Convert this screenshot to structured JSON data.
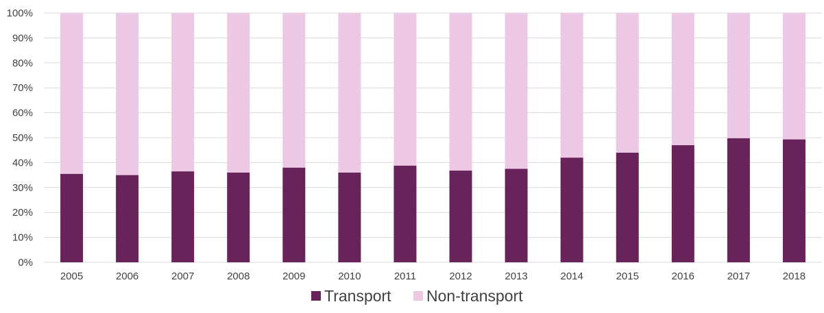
{
  "chart_data": {
    "type": "bar",
    "stacked": true,
    "percent_stacked": true,
    "categories": [
      "2005",
      "2006",
      "2007",
      "2008",
      "2009",
      "2010",
      "2011",
      "2012",
      "2013",
      "2014",
      "2015",
      "2016",
      "2017",
      "2018"
    ],
    "series": [
      {
        "name": "Transport",
        "color": "#68235a",
        "values": [
          35.5,
          35,
          36.5,
          36,
          38,
          36,
          38.8,
          36.8,
          37.5,
          42,
          44,
          47,
          49.8,
          49.3
        ]
      },
      {
        "name": "Non-transport",
        "color": "#ecc8e4",
        "values": [
          64.5,
          65,
          63.5,
          64,
          62,
          64,
          61.2,
          63.2,
          62.5,
          58,
          56,
          53,
          50.2,
          50.7
        ]
      }
    ],
    "y_ticks": [
      "0%",
      "10%",
      "20%",
      "30%",
      "40%",
      "50%",
      "60%",
      "70%",
      "80%",
      "90%",
      "100%"
    ],
    "ylim": [
      0,
      100
    ],
    "grid": true,
    "legend_position": "bottom-center",
    "title": "",
    "xlabel": "",
    "ylabel": ""
  }
}
